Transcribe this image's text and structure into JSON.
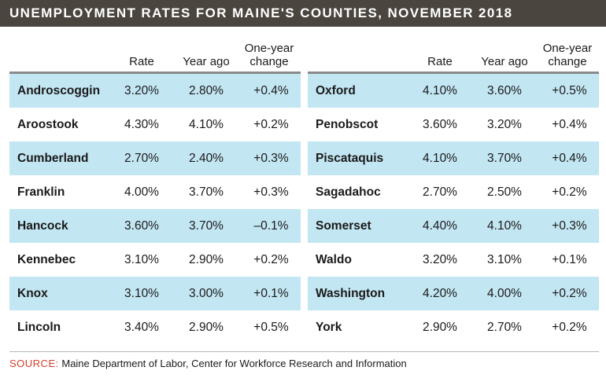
{
  "chart_data": {
    "type": "table",
    "title": "UNEMPLOYMENT RATES FOR MAINE'S COUNTIES, NOVEMBER 2018",
    "columns": [
      "Rate",
      "Year ago",
      "One-year change"
    ],
    "left_table": [
      {
        "county": "Androscoggin",
        "rate": "3.20%",
        "year_ago": "2.80%",
        "change": "+0.4%"
      },
      {
        "county": "Aroostook",
        "rate": "4.30%",
        "year_ago": "4.10%",
        "change": "+0.2%"
      },
      {
        "county": "Cumberland",
        "rate": "2.70%",
        "year_ago": "2.40%",
        "change": "+0.3%"
      },
      {
        "county": "Franklin",
        "rate": "4.00%",
        "year_ago": "3.70%",
        "change": "+0.3%"
      },
      {
        "county": "Hancock",
        "rate": "3.60%",
        "year_ago": "3.70%",
        "change": "–0.1%"
      },
      {
        "county": "Kennebec",
        "rate": "3.10%",
        "year_ago": "2.90%",
        "change": "+0.2%"
      },
      {
        "county": "Knox",
        "rate": "3.10%",
        "year_ago": "3.00%",
        "change": "+0.1%"
      },
      {
        "county": "Lincoln",
        "rate": "3.40%",
        "year_ago": "2.90%",
        "change": "+0.5%"
      }
    ],
    "right_table": [
      {
        "county": "Oxford",
        "rate": "4.10%",
        "year_ago": "3.60%",
        "change": "+0.5%"
      },
      {
        "county": "Penobscot",
        "rate": "3.60%",
        "year_ago": "3.20%",
        "change": "+0.4%"
      },
      {
        "county": "Piscataquis",
        "rate": "4.10%",
        "year_ago": "3.70%",
        "change": "+0.4%"
      },
      {
        "county": "Sagadahoc",
        "rate": "2.70%",
        "year_ago": "2.50%",
        "change": "+0.2%"
      },
      {
        "county": "Somerset",
        "rate": "4.40%",
        "year_ago": "4.10%",
        "change": "+0.3%"
      },
      {
        "county": "Waldo",
        "rate": "3.20%",
        "year_ago": "3.10%",
        "change": "+0.1%"
      },
      {
        "county": "Washington",
        "rate": "4.20%",
        "year_ago": "4.00%",
        "change": "+0.2%"
      },
      {
        "county": "York",
        "rate": "2.90%",
        "year_ago": "2.70%",
        "change": "+0.2%"
      }
    ]
  },
  "source": {
    "label": "SOURCE:",
    "text": "Maine Department of Labor, Center for Workforce Research and Information"
  },
  "colors": {
    "banner": "#4a453f",
    "row_shade": "#c3e6f3",
    "source_label": "#d0402a"
  }
}
